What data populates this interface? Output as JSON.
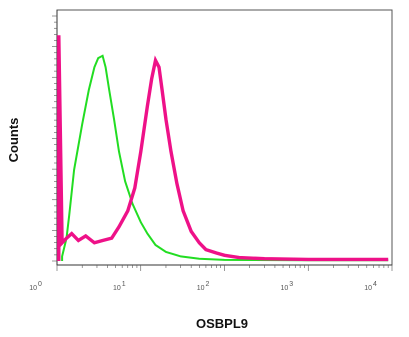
{
  "chart_data": {
    "type": "line",
    "title": "",
    "xlabel": "OSBPL9",
    "ylabel": "Counts",
    "x_scale": "log",
    "xlim": [
      1,
      10000
    ],
    "tick_labels": [
      "10",
      "10",
      "10",
      "10",
      "10"
    ],
    "tick_exponents": [
      "0",
      "1",
      "2",
      "3",
      "4"
    ],
    "grid": false,
    "legend": "none",
    "series": [
      {
        "color": "#22dd22",
        "x": [
          1.15,
          1.3,
          1.4,
          1.6,
          2.0,
          2.4,
          2.8,
          3.1,
          3.5,
          3.8,
          4.2,
          4.8,
          5.5,
          6.5,
          8.0,
          10.0,
          12.0,
          15.0,
          20.0,
          30.0,
          50.0,
          100.0,
          1000.0,
          9000.0
        ],
        "values": [
          0.02,
          0.1,
          0.2,
          0.4,
          0.6,
          0.75,
          0.85,
          0.89,
          0.9,
          0.85,
          0.75,
          0.62,
          0.48,
          0.35,
          0.25,
          0.17,
          0.12,
          0.07,
          0.04,
          0.02,
          0.01,
          0.005,
          0.003,
          0.003
        ]
      },
      {
        "color": "#ee1188",
        "x": [
          1.05,
          1.15,
          1.3,
          1.5,
          1.8,
          2.2,
          2.8,
          3.5,
          4.5,
          5.5,
          7.0,
          8.5,
          10.0,
          12.0,
          13.5,
          15.0,
          16.5,
          18.0,
          20.0,
          23.0,
          27.0,
          32.0,
          40.0,
          50.0,
          60.0,
          80.0,
          100.0,
          150.0,
          300.0,
          1000.0,
          9000.0
        ],
        "values": [
          0.99,
          0.08,
          0.1,
          0.12,
          0.09,
          0.11,
          0.08,
          0.09,
          0.1,
          0.15,
          0.22,
          0.32,
          0.48,
          0.68,
          0.8,
          0.88,
          0.85,
          0.75,
          0.62,
          0.48,
          0.34,
          0.22,
          0.13,
          0.08,
          0.05,
          0.035,
          0.025,
          0.015,
          0.01,
          0.007,
          0.007
        ]
      }
    ]
  }
}
